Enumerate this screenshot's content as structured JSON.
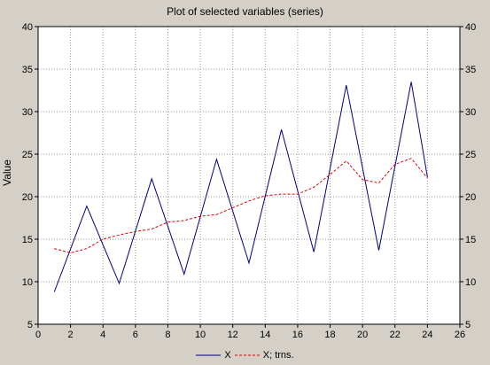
{
  "chart_data": {
    "type": "line",
    "title": "Plot of selected variables (series)",
    "xlabel": "",
    "ylabel": "Value",
    "xlim": [
      0,
      26
    ],
    "ylim": [
      5,
      40
    ],
    "xticks": [
      0,
      2,
      4,
      6,
      8,
      10,
      12,
      14,
      16,
      18,
      20,
      22,
      24,
      26
    ],
    "yticks": [
      5,
      10,
      15,
      20,
      25,
      30,
      35,
      40
    ],
    "grid": true,
    "legend_position": "bottom",
    "series": [
      {
        "name": "X",
        "color": "#000080",
        "style": "solid",
        "x": [
          1,
          3,
          5,
          7,
          9,
          11,
          13,
          15,
          17,
          19,
          21,
          23,
          24
        ],
        "y": [
          8.8,
          18.9,
          9.8,
          22.1,
          10.9,
          24.4,
          12.2,
          27.9,
          13.5,
          33.1,
          13.7,
          33.5,
          22.3
        ]
      },
      {
        "name": "X; trns.",
        "color": "#e00000",
        "style": "dashed",
        "x": [
          1,
          2,
          3,
          4,
          5,
          6,
          7,
          8,
          9,
          10,
          11,
          12,
          13,
          14,
          15,
          16,
          17,
          18,
          19,
          20,
          21,
          22,
          23,
          24
        ],
        "y": [
          13.9,
          13.4,
          13.9,
          15.0,
          15.5,
          15.9,
          16.2,
          17.0,
          17.2,
          17.7,
          17.9,
          18.7,
          19.5,
          20.1,
          20.3,
          20.3,
          21.1,
          22.6,
          24.2,
          22.0,
          21.6,
          23.8,
          24.5,
          22.2
        ]
      }
    ]
  }
}
